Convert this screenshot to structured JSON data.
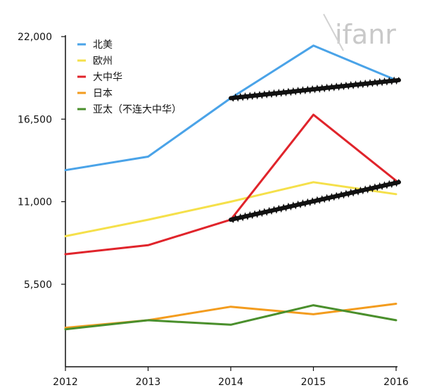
{
  "watermark": "ifanr",
  "chart_data": {
    "type": "line",
    "title": "",
    "xlabel": "",
    "ylabel": "",
    "x": [
      "2012",
      "2013",
      "2014",
      "2015",
      "2016"
    ],
    "ylim": [
      0,
      22000
    ],
    "yticks": [
      5500,
      11000,
      16500,
      22000
    ],
    "ytick_labels": [
      "5,500",
      "11,000",
      "16,500",
      "22,000"
    ],
    "grid": false,
    "legend_position": "top-left",
    "series": [
      {
        "name": "北美",
        "color": "#4aa3e8",
        "values": [
          13100,
          14000,
          17900,
          21400,
          19100
        ]
      },
      {
        "name": "欧州",
        "color": "#f5e04a",
        "values": [
          8700,
          9800,
          11000,
          12300,
          11500
        ]
      },
      {
        "name": "大中华",
        "color": "#e0242b",
        "values": [
          7500,
          8100,
          9800,
          16800,
          12400
        ]
      },
      {
        "name": "日本",
        "color": "#f39c1e",
        "values": [
          2600,
          3100,
          4000,
          3500,
          4200
        ]
      },
      {
        "name": "亚太（不连大中华）",
        "color": "#4a8f2c",
        "values": [
          2500,
          3100,
          2800,
          4100,
          3100
        ]
      }
    ],
    "annotations": [
      {
        "type": "trend-line",
        "color": "#111111",
        "from": [
          "2014",
          17900
        ],
        "to": [
          "2016",
          19100
        ]
      },
      {
        "type": "trend-line",
        "color": "#111111",
        "from": [
          "2014",
          9800
        ],
        "to": [
          "2016",
          12300
        ]
      }
    ]
  }
}
